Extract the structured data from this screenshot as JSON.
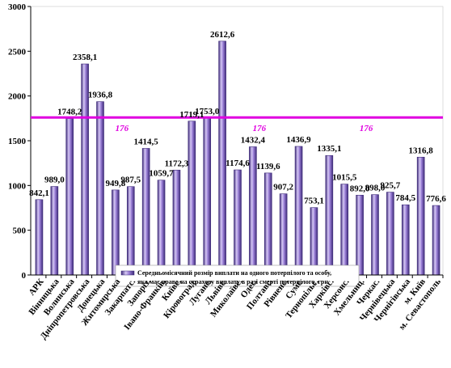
{
  "chart_data": {
    "type": "bar",
    "categories": [
      "АРК",
      "Вінницька",
      "Волинська",
      "Дніпропетровська",
      "Донецька",
      "Житомирська",
      "Закарпатс.",
      "Запоріз.",
      "Івано-Франків.",
      "Київс.",
      "Кіровоград.",
      "Луганс.",
      "Львівс.",
      "Миколаївс.",
      "Одес.",
      "Полтавс.",
      "Рівненс.",
      "Сумс.",
      "Тернопільс.",
      "Харківс.",
      "Херсонс.",
      "Хмельниц.",
      "Черкас.",
      "Чернівецька",
      "Чернігівська",
      "м. Київ",
      "м. Севастополь"
    ],
    "series": [
      {
        "name": "Середньомісячний розмір виплати на одного потерпілого та особу, яка має право на страхову виплату в разі смерті потерпілого, грн",
        "values": [
          842.1,
          989.0,
          1748.2,
          2358.1,
          1936.8,
          949.8,
          987.5,
          1414.5,
          1059.7,
          1172.3,
          1719.1,
          1753.0,
          2612.6,
          1174.6,
          1432.4,
          1139.6,
          907.2,
          1436.9,
          753.1,
          1335.1,
          1015.5,
          892.0,
          898.0,
          925.7,
          784.5,
          1316.8,
          776.6
        ]
      }
    ],
    "data_labels": [
      "842,1",
      "989,0",
      "1748,2",
      "2358,1",
      "1936,8",
      "949,8",
      "987,5",
      "1414,5",
      "1059,7",
      "1172,3",
      "1719,1",
      "1753,0",
      "2612,6",
      "1174,6",
      "1432,4",
      "1139,6",
      "907,2",
      "1436,9",
      "753,1",
      "1335,1",
      "1015,5",
      "892,0",
      "898,0",
      "925,7",
      "784,5",
      "1316,8",
      "776,6"
    ],
    "reference_line": {
      "value": 1760,
      "color": "#e000e0",
      "labels": [
        "176",
        "176",
        "176"
      ]
    },
    "yticks": [
      "0",
      "500",
      "1000",
      "1500",
      "2000",
      "2500",
      "3000"
    ],
    "ylim": [
      0,
      3000
    ],
    "grid": false,
    "legend_position": "bottom-center",
    "colors": {
      "bar_fill": "#9a7fd6",
      "bar_light": "#d6c8f5",
      "bar_dark": "#3d2a78",
      "plot_bg": "#ffffff"
    }
  }
}
